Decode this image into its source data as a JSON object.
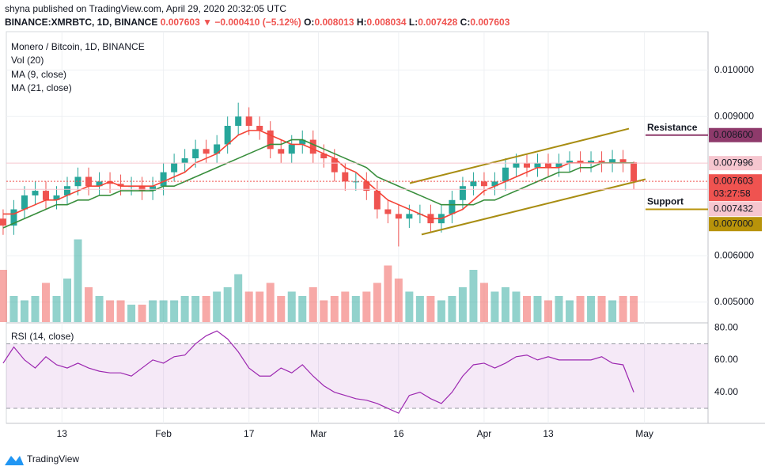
{
  "header": {
    "published": "shyna published on TradingView.com, April 29, 2020 20:32:05 UTC",
    "symbol": "BINANCE:XMRBTC, 1D, BINANCE",
    "last": "0.007603",
    "arrow": "▼",
    "change": "−0.000410 (−5.12%)",
    "ohlc": [
      {
        "key": "O:",
        "value": "0.008013"
      },
      {
        "key": "H:",
        "value": "0.008034"
      },
      {
        "key": "L:",
        "value": "0.007428"
      },
      {
        "key": "C:",
        "value": "0.007603"
      }
    ]
  },
  "chart_data": {
    "type": "candlestick",
    "title": "Monero / Bitcoin, 1D, BINANCE",
    "x": [
      2,
      4,
      6,
      8,
      10,
      12,
      14,
      16,
      18,
      20,
      22,
      24,
      26,
      28,
      30,
      32,
      34,
      36,
      38,
      40,
      42,
      44,
      46,
      48,
      50,
      52,
      54,
      56,
      58,
      60,
      62,
      64,
      66,
      68,
      70,
      72,
      74,
      76,
      78,
      80,
      82,
      84,
      86,
      88,
      90,
      92,
      94,
      96,
      98,
      100,
      102,
      104,
      106,
      108,
      110,
      112,
      114,
      116,
      118,
      120
    ],
    "open": [
      0.0068,
      0.00665,
      0.007,
      0.0073,
      0.0074,
      0.0072,
      0.0073,
      0.0075,
      0.0077,
      0.0075,
      0.0076,
      0.00755,
      0.0075,
      0.0075,
      0.0074,
      0.0075,
      0.0078,
      0.008,
      0.0081,
      0.0083,
      0.0082,
      0.0084,
      0.0088,
      0.009,
      0.0088,
      0.0087,
      0.0083,
      0.0082,
      0.0084,
      0.0085,
      0.0082,
      0.0081,
      0.0078,
      0.0076,
      0.0076,
      0.0074,
      0.007,
      0.0069,
      0.0068,
      0.0069,
      0.0069,
      0.0067,
      0.0069,
      0.0072,
      0.0075,
      0.0076,
      0.0075,
      0.0076,
      0.0079,
      0.008,
      0.0079,
      0.008,
      0.0079,
      0.008,
      0.00805,
      0.008,
      0.00805,
      0.008,
      0.00808,
      0.008013
    ],
    "high": [
      0.007,
      0.0072,
      0.0075,
      0.0076,
      0.0076,
      0.0075,
      0.0077,
      0.0079,
      0.0079,
      0.0078,
      0.0078,
      0.00775,
      0.0077,
      0.0077,
      0.0077,
      0.008,
      0.0082,
      0.0083,
      0.0085,
      0.0085,
      0.0086,
      0.009,
      0.0093,
      0.0092,
      0.009,
      0.0089,
      0.0085,
      0.0086,
      0.0087,
      0.0087,
      0.0084,
      0.0083,
      0.008,
      0.0078,
      0.0078,
      0.0076,
      0.0072,
      0.0071,
      0.0071,
      0.0071,
      0.0071,
      0.0071,
      0.0074,
      0.0077,
      0.0078,
      0.0078,
      0.0078,
      0.0081,
      0.0082,
      0.0082,
      0.0082,
      0.0082,
      0.0082,
      0.00825,
      0.00825,
      0.00825,
      0.00825,
      0.00828,
      0.00828,
      0.008034
    ],
    "low": [
      0.00645,
      0.00645,
      0.0068,
      0.0071,
      0.007,
      0.007,
      0.0071,
      0.0073,
      0.0073,
      0.0073,
      0.00735,
      0.0073,
      0.0073,
      0.0072,
      0.0072,
      0.0073,
      0.0076,
      0.0078,
      0.0079,
      0.008,
      0.008,
      0.0082,
      0.0086,
      0.0086,
      0.0085,
      0.0081,
      0.008,
      0.008,
      0.0082,
      0.008,
      0.0079,
      0.0076,
      0.0074,
      0.0074,
      0.0072,
      0.0068,
      0.0067,
      0.0062,
      0.0066,
      0.0067,
      0.0065,
      0.0065,
      0.0067,
      0.007,
      0.0073,
      0.0073,
      0.0073,
      0.0074,
      0.0077,
      0.0077,
      0.0077,
      0.0077,
      0.0077,
      0.0078,
      0.0078,
      0.0078,
      0.0078,
      0.0078,
      0.0078,
      0.007428
    ],
    "close": [
      0.00665,
      0.007,
      0.0073,
      0.0074,
      0.0072,
      0.0073,
      0.0075,
      0.0077,
      0.0075,
      0.0076,
      0.00755,
      0.0075,
      0.0075,
      0.0074,
      0.0075,
      0.0078,
      0.008,
      0.0081,
      0.0083,
      0.0082,
      0.0084,
      0.0088,
      0.009,
      0.0088,
      0.0087,
      0.0083,
      0.0082,
      0.0084,
      0.0085,
      0.0082,
      0.0081,
      0.0078,
      0.0076,
      0.0076,
      0.0074,
      0.007,
      0.0069,
      0.0068,
      0.0069,
      0.0069,
      0.0067,
      0.0069,
      0.0072,
      0.0075,
      0.0076,
      0.0075,
      0.0076,
      0.0079,
      0.008,
      0.0079,
      0.008,
      0.0079,
      0.008,
      0.00805,
      0.008,
      0.00805,
      0.008,
      0.00808,
      0.008013,
      0.007603
    ],
    "up_color": "#26a69a",
    "down_color": "#ef5350",
    "xlim": [
      2.6,
      133.9
    ],
    "xticks": [
      {
        "value": 13,
        "label": "13"
      },
      {
        "value": 32,
        "label": "Feb"
      },
      {
        "value": 48,
        "label": "17"
      },
      {
        "value": 61,
        "label": "Mar"
      },
      {
        "value": 76,
        "label": "16"
      },
      {
        "value": 92,
        "label": "Apr"
      },
      {
        "value": 104,
        "label": "13"
      },
      {
        "value": 122,
        "label": "May"
      }
    ],
    "ylim": [
      0.00457,
      0.01083
    ],
    "yticks": [
      {
        "value": 0.005,
        "label": "0.005000"
      },
      {
        "value": 0.006,
        "label": "0.006000"
      },
      {
        "value": 0.009,
        "label": "0.009000"
      },
      {
        "value": 0.01,
        "label": "0.010000"
      }
    ],
    "grid": true,
    "series": [
      {
        "name": "MA (9, close)",
        "color": "#f44336",
        "values": [
          0.0069,
          0.0069,
          0.007,
          0.0071,
          0.0072,
          0.0072,
          0.0073,
          0.0074,
          0.0075,
          0.0075,
          0.0076,
          0.0075,
          0.0075,
          0.0075,
          0.0075,
          0.0076,
          0.0077,
          0.0078,
          0.008,
          0.0081,
          0.0082,
          0.0084,
          0.0086,
          0.0087,
          0.0087,
          0.0086,
          0.0085,
          0.0084,
          0.0084,
          0.0083,
          0.0082,
          0.0081,
          0.0079,
          0.0078,
          0.0076,
          0.0074,
          0.0072,
          0.0071,
          0.007,
          0.0069,
          0.0068,
          0.0068,
          0.0069,
          0.007,
          0.0072,
          0.0074,
          0.0075,
          0.0076,
          0.0077,
          0.0078,
          0.0079,
          0.0079,
          0.0079,
          0.008,
          0.008,
          0.008,
          0.008,
          0.008,
          0.008,
          0.008
        ]
      },
      {
        "name": "MA (21, close)",
        "color": "#388e3c",
        "values": [
          0.0066,
          0.0067,
          0.0068,
          0.0069,
          0.007,
          0.0071,
          0.0071,
          0.0072,
          0.0072,
          0.0073,
          0.0073,
          0.0074,
          0.0074,
          0.0074,
          0.0074,
          0.0075,
          0.0075,
          0.0076,
          0.0077,
          0.0078,
          0.0079,
          0.008,
          0.0081,
          0.0082,
          0.0083,
          0.0084,
          0.0084,
          0.0085,
          0.0085,
          0.0084,
          0.0083,
          0.0082,
          0.0081,
          0.008,
          0.0079,
          0.0077,
          0.0076,
          0.0075,
          0.0074,
          0.0073,
          0.0072,
          0.0071,
          0.0071,
          0.0071,
          0.0071,
          0.0072,
          0.0072,
          0.0073,
          0.0074,
          0.0075,
          0.0076,
          0.0077,
          0.0078,
          0.0078,
          0.0079,
          0.0079,
          0.008,
          0.008,
          0.008,
          0.008
        ]
      }
    ],
    "volume": {
      "name": "Vol (20)",
      "ylim": [
        0,
        100
      ],
      "values": [
        60,
        30,
        25,
        30,
        45,
        30,
        50,
        95,
        40,
        30,
        25,
        25,
        20,
        20,
        25,
        25,
        25,
        30,
        30,
        30,
        35,
        40,
        55,
        35,
        35,
        45,
        30,
        35,
        30,
        40,
        25,
        30,
        35,
        30,
        35,
        45,
        65,
        50,
        35,
        30,
        30,
        25,
        30,
        40,
        60,
        45,
        35,
        40,
        35,
        30,
        30,
        25,
        30,
        25,
        30,
        30,
        30,
        25,
        30,
        30
      ]
    },
    "price_lines": [
      {
        "value": 0.007996,
        "label": "0.007996",
        "color": "#f6c6cf",
        "text_color": "#131722"
      },
      {
        "value": 0.007603,
        "label": "0.007603",
        "color": "#ef5350",
        "text_color": "#ffffff"
      },
      {
        "value": 0.007432,
        "label": "0.007432",
        "color": "#f6c6cf",
        "text_color": "#131722"
      }
    ],
    "countdown": "03:27:58",
    "levels": [
      {
        "name": "Resistance",
        "value": 0.0086,
        "label": "0.008600",
        "color": "#8e3a6b",
        "text_color": "#c0601a"
      },
      {
        "name": "Support",
        "value": 0.007,
        "label": "0.007000",
        "color": "#b8930a",
        "text_color": "#8e3a6b"
      }
    ],
    "channel": {
      "color": "#a88d12",
      "lines": [
        {
          "x": [
            78.1,
            119.1
          ],
          "values": [
            0.007564,
            0.008739
          ]
        },
        {
          "x": [
            80.3,
            122.2
          ],
          "values": [
            0.006457,
            0.007649
          ]
        }
      ]
    }
  },
  "rsi": {
    "name": "RSI (14, close)",
    "color": "#9c27b0",
    "ylim": [
      20.7,
      82
    ],
    "yticks": [
      {
        "value": 40,
        "label": "40.00"
      },
      {
        "value": 60,
        "label": "60.00"
      },
      {
        "value": 80,
        "label": "80.00"
      }
    ],
    "bands": [
      30,
      70
    ],
    "values": [
      58,
      68,
      60,
      55,
      62,
      57,
      55,
      58,
      55,
      53,
      52,
      52,
      50,
      55,
      60,
      58,
      62,
      63,
      70,
      75,
      78,
      73,
      65,
      55,
      50,
      50,
      55,
      52,
      57,
      50,
      44,
      40,
      38,
      36,
      35,
      33,
      30,
      27,
      38,
      40,
      36,
      33,
      40,
      50,
      57,
      58,
      55,
      58,
      62,
      63,
      60,
      62,
      60,
      60,
      60,
      60,
      62,
      58,
      57,
      40
    ]
  },
  "footer": {
    "brand": "TradingView"
  }
}
